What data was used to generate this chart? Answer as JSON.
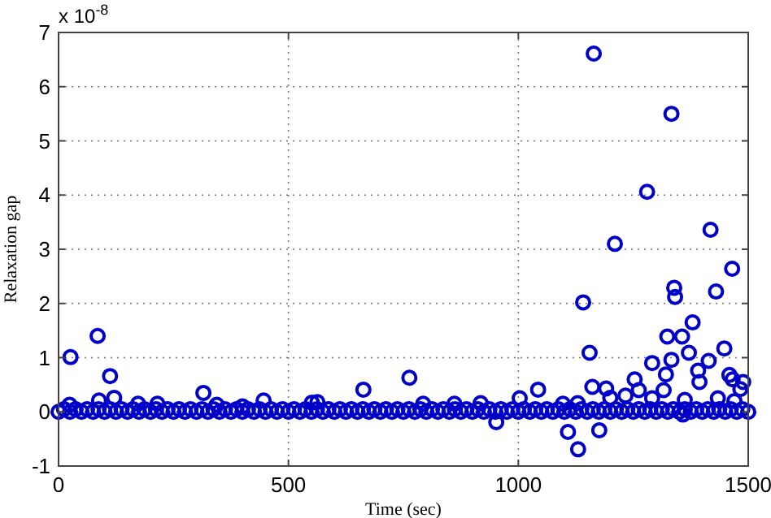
{
  "chart_data": {
    "type": "scatter",
    "xlabel": "Time (sec)",
    "ylabel": "Relaxation gap",
    "annotations": [
      "x 10$^{-8}$"
    ],
    "xlim": [
      0,
      1500
    ],
    "xticks": [
      0,
      500,
      1000,
      1500
    ],
    "ylim": [
      -1,
      7
    ],
    "yticks": [
      -1,
      0,
      1,
      2,
      3,
      4,
      5,
      6,
      7
    ],
    "grid": true,
    "marker": "circle",
    "series": [
      {
        "color": "#0000c8",
        "x": [
          0,
          25,
          50,
          75,
          100,
          125,
          150,
          175,
          200,
          225,
          250,
          275,
          300,
          325,
          350,
          375,
          400,
          425,
          450,
          475,
          500,
          525,
          550,
          575,
          600,
          625,
          650,
          675,
          700,
          725,
          750,
          775,
          800,
          825,
          850,
          875,
          900,
          925,
          950,
          975,
          1000,
          1025,
          1050,
          1075,
          1100,
          1125,
          1150,
          1175,
          1200,
          1225,
          1250,
          1275,
          1300,
          1325,
          1350,
          1375,
          1400,
          1425,
          1450,
          1475,
          1500
        ],
        "values": [
          0,
          0,
          0,
          0,
          0,
          0,
          0,
          0,
          0,
          0,
          0,
          0,
          0,
          0,
          0,
          0,
          0,
          0,
          0,
          0,
          0,
          0,
          0,
          0,
          0,
          0,
          0,
          0,
          0,
          0,
          0,
          0,
          0,
          0,
          0,
          0,
          0,
          0,
          0,
          0,
          0,
          0,
          0,
          0,
          0,
          0,
          0,
          0,
          0,
          0,
          0,
          0,
          0,
          0,
          0,
          0,
          0,
          0,
          0,
          0,
          0
        ]
      },
      {
        "color": "#0000c8",
        "x": [
          12,
          37,
          62,
          87,
          112,
          137,
          162,
          187,
          212,
          237,
          262,
          287,
          312,
          337,
          362,
          387,
          412,
          437,
          462,
          487,
          512,
          537,
          562,
          587,
          612,
          637,
          662,
          687,
          712,
          737,
          762,
          787,
          812,
          837,
          862,
          887,
          912,
          937,
          962,
          987,
          1012,
          1037,
          1062,
          1087,
          1112,
          1137,
          1162,
          1187,
          1212,
          1237,
          1262,
          1287,
          1312,
          1337,
          1362,
          1387,
          1412,
          1437,
          1462,
          1487
        ],
        "values": [
          0.05,
          0.05,
          0.05,
          0.05,
          0.05,
          0.05,
          0.05,
          0.05,
          0.05,
          0.05,
          0.05,
          0.05,
          0.05,
          0.05,
          0.05,
          0.05,
          0.05,
          0.05,
          0.05,
          0.05,
          0.05,
          0.05,
          0.05,
          0.05,
          0.05,
          0.05,
          0.05,
          0.05,
          0.05,
          0.05,
          0.05,
          0.05,
          0.05,
          0.05,
          0.05,
          0.05,
          0.05,
          0.05,
          0.05,
          0.05,
          0.05,
          0.05,
          0.05,
          0.05,
          0.05,
          0.05,
          0.05,
          0.05,
          0.05,
          0.05,
          0.05,
          0.05,
          0.05,
          0.05,
          0.05,
          0.05,
          0.05,
          0.05,
          0.05,
          0.05
        ]
      },
      {
        "color": "#0000c8",
        "x": [
          24,
          26,
          85,
          88,
          112,
          121,
          173,
          215,
          315,
          344,
          400,
          446,
          551,
          563,
          663,
          763,
          793,
          861,
          918,
          952,
          1003,
          1043,
          1097,
          1108,
          1129,
          1130,
          1141,
          1155,
          1161,
          1164,
          1176,
          1191,
          1200,
          1210,
          1233,
          1253,
          1262,
          1280,
          1291,
          1291,
          1316,
          1321,
          1324,
          1333,
          1333,
          1339,
          1341,
          1356,
          1358,
          1362,
          1371,
          1379,
          1391,
          1394,
          1414,
          1418,
          1430,
          1434,
          1448,
          1459,
          1465,
          1466,
          1470,
          1483,
          1489
        ],
        "values": [
          0.13,
          1.01,
          1.4,
          0.21,
          0.66,
          0.26,
          0.15,
          0.15,
          0.35,
          0.13,
          0.1,
          0.21,
          0.17,
          0.18,
          0.41,
          0.63,
          0.15,
          0.15,
          0.16,
          -0.19,
          0.25,
          0.41,
          0.15,
          -0.37,
          0.16,
          -0.69,
          2.02,
          1.09,
          0.46,
          6.61,
          -0.34,
          0.43,
          0.26,
          3.1,
          0.3,
          0.6,
          0.4,
          4.06,
          0.9,
          0.25,
          0.4,
          0.69,
          1.39,
          0.96,
          5.5,
          2.29,
          2.12,
          1.39,
          -0.05,
          0.22,
          1.09,
          1.65,
          0.76,
          0.55,
          0.94,
          3.36,
          2.22,
          0.25,
          1.17,
          0.68,
          2.64,
          0.6,
          0.2,
          0.42,
          0.55
        ]
      }
    ]
  }
}
